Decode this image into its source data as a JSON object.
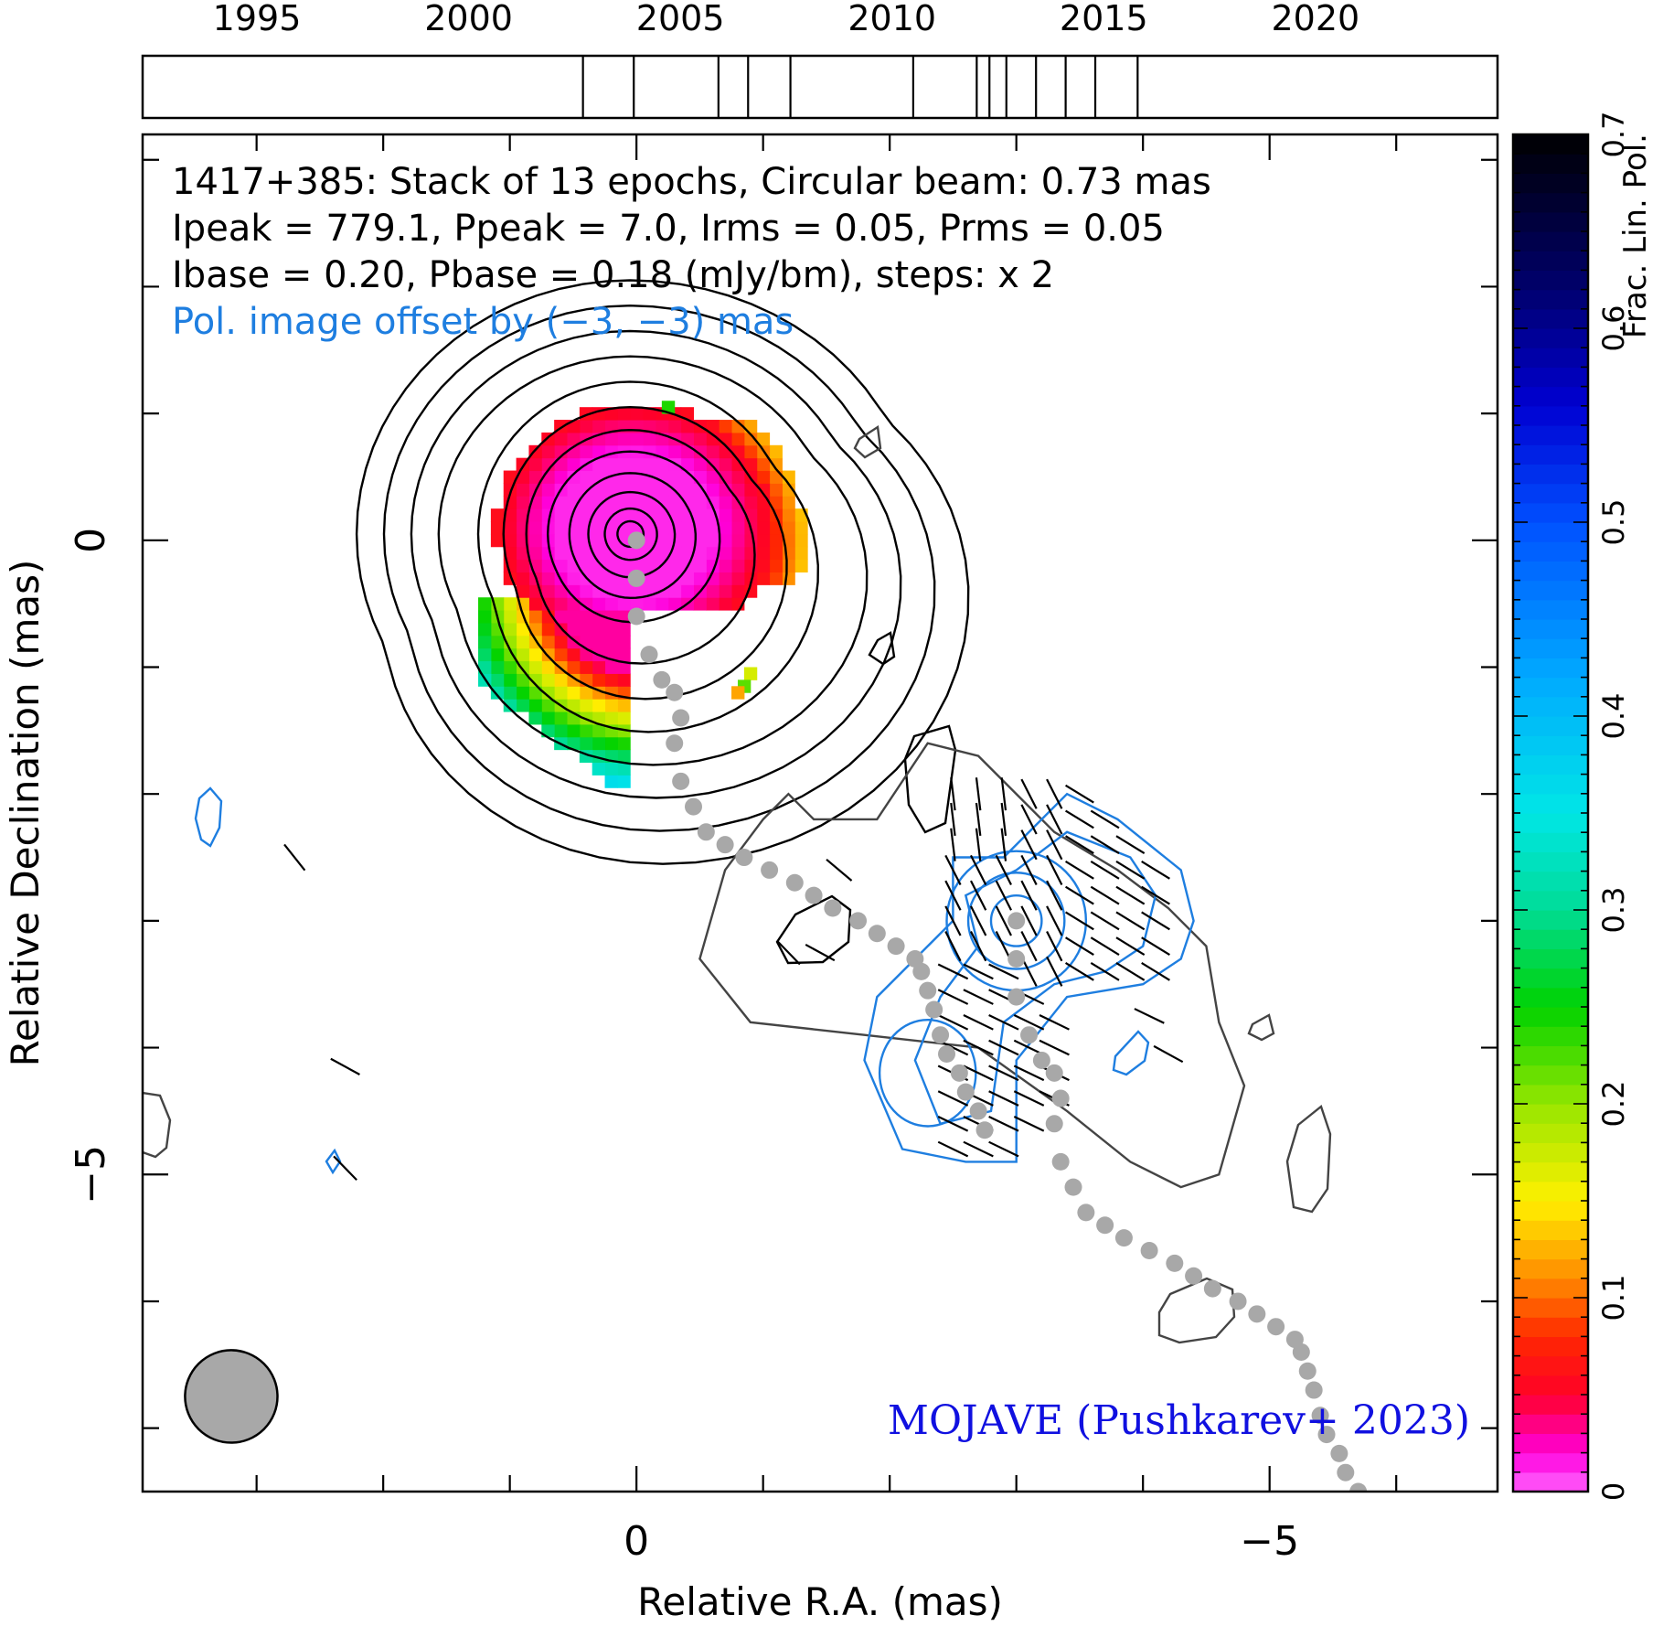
{
  "chart_data": {
    "type": "contour",
    "source": "1417+385",
    "annotations": {
      "line1": "1417+385: Stack of 13 epochs, Circular beam: 0.73 mas",
      "line2": "Ipeak = 779.1, Ppeak = 7.0, Irms = 0.05, Prms = 0.05",
      "line3": "Ibase = 0.20, Pbase = 0.18 (mJy/bm), steps: x 2",
      "line4": "Pol. image offset by (−3, −3) mas",
      "credit": "MOJAVE (Pushkarev+ 2023)"
    },
    "xlabel": "Relative R.A. (mas)",
    "ylabel": "Relative Declination (mas)",
    "xlim": [
      3.9,
      -6.8
    ],
    "ylim": [
      -7.5,
      3.2
    ],
    "x_ticks": [
      {
        "value": 0,
        "label": "0"
      },
      {
        "value": -5,
        "label": "−5"
      }
    ],
    "y_ticks": [
      {
        "value": 0,
        "label": "0"
      },
      {
        "value": -5,
        "label": "−5"
      }
    ],
    "timeline": {
      "range": [
        1992.3,
        2024.3
      ],
      "tick_labels": [
        {
          "year": 1995,
          "label": "1995"
        },
        {
          "year": 2000,
          "label": "2000"
        },
        {
          "year": 2005,
          "label": "2005"
        },
        {
          "year": 2010,
          "label": "2010"
        },
        {
          "year": 2015,
          "label": "2015"
        },
        {
          "year": 2020,
          "label": "2020"
        }
      ],
      "epochs": [
        2002.7,
        2003.9,
        2005.9,
        2006.6,
        2007.6,
        2010.5,
        2012.0,
        2012.3,
        2012.7,
        2013.4,
        2014.1,
        2014.8,
        2015.8
      ]
    },
    "colorbar": {
      "label": "Frac. Lin. Pol.",
      "range": [
        0,
        0.7
      ],
      "ticks": [
        {
          "value": 0,
          "label": "0"
        },
        {
          "value": 0.1,
          "label": "0.1"
        },
        {
          "value": 0.2,
          "label": "0.2"
        },
        {
          "value": 0.3,
          "label": "0.3"
        },
        {
          "value": 0.4,
          "label": "0.4"
        },
        {
          "value": 0.5,
          "label": "0.5"
        },
        {
          "value": 0.6,
          "label": "0.6"
        },
        {
          "value": 0.7,
          "label": "0.7"
        }
      ]
    },
    "beam": {
      "x": 3.2,
      "y": -6.75,
      "diameter": 0.73
    },
    "stokes_i_contours": {
      "center": [
        0.05,
        0.05
      ],
      "radii": [
        2.0,
        1.8,
        1.6,
        1.4,
        1.2,
        1.0,
        0.82,
        0.65,
        0.48,
        0.33,
        0.2,
        0.1
      ]
    },
    "offset_i_contours": [
      [
        [
          -1.4,
          -2.2
        ],
        [
          -1.2,
          -2.0
        ],
        [
          -1.0,
          -2.2
        ],
        [
          -0.7,
          -2.6
        ],
        [
          -0.5,
          -3.3
        ],
        [
          -0.9,
          -3.8
        ],
        [
          -1.8,
          -3.9
        ],
        [
          -2.7,
          -4.0
        ],
        [
          -3.4,
          -4.5
        ],
        [
          -3.9,
          -4.9
        ],
        [
          -4.3,
          -5.1
        ],
        [
          -4.6,
          -5.0
        ],
        [
          -4.8,
          -4.3
        ],
        [
          -4.6,
          -3.8
        ],
        [
          -4.5,
          -3.2
        ],
        [
          -4.2,
          -2.9
        ],
        [
          -3.8,
          -2.6
        ],
        [
          -3.3,
          -2.3
        ],
        [
          -2.7,
          -1.7
        ],
        [
          -2.3,
          -1.6
        ],
        [
          -1.9,
          -2.2
        ],
        [
          -1.4,
          -2.2
        ]
      ]
    ],
    "pol_contours": [
      [
        [
          -2.9,
          -2.5
        ],
        [
          -3.4,
          -2.0
        ],
        [
          -3.8,
          -2.2
        ],
        [
          -4.3,
          -2.6
        ],
        [
          -4.4,
          -3.0
        ],
        [
          -4.3,
          -3.3
        ],
        [
          -4.0,
          -3.5
        ],
        [
          -3.4,
          -3.6
        ],
        [
          -3.0,
          -4.1
        ],
        [
          -3.0,
          -4.9
        ],
        [
          -2.6,
          -4.9
        ],
        [
          -2.1,
          -4.8
        ],
        [
          -1.8,
          -4.1
        ],
        [
          -1.9,
          -3.6
        ],
        [
          -2.2,
          -3.3
        ],
        [
          -2.5,
          -3.0
        ],
        [
          -2.5,
          -2.5
        ],
        [
          -2.9,
          -2.5
        ]
      ],
      [
        [
          -3.0,
          -2.6
        ],
        [
          -3.4,
          -2.3
        ],
        [
          -3.9,
          -2.5
        ],
        [
          -4.1,
          -2.8
        ],
        [
          -4.0,
          -3.2
        ],
        [
          -3.7,
          -3.4
        ],
        [
          -3.3,
          -3.5
        ],
        [
          -2.9,
          -3.8
        ],
        [
          -2.8,
          -4.5
        ],
        [
          -2.4,
          -4.6
        ],
        [
          -2.2,
          -4.1
        ],
        [
          -2.4,
          -3.6
        ],
        [
          -2.7,
          -3.2
        ],
        [
          -2.6,
          -2.8
        ],
        [
          -3.0,
          -2.6
        ]
      ]
    ],
    "jet_ridge_core": [
      [
        0,
        0
      ],
      [
        0,
        -0.3
      ],
      [
        0,
        -0.6
      ],
      [
        -0.1,
        -0.9
      ],
      [
        -0.2,
        -1.1
      ],
      [
        -0.3,
        -1.2
      ],
      [
        -0.35,
        -1.4
      ],
      [
        -0.3,
        -1.6
      ],
      [
        -0.35,
        -1.9
      ],
      [
        -0.45,
        -2.1
      ],
      [
        -0.55,
        -2.3
      ],
      [
        -0.7,
        -2.4
      ],
      [
        -0.85,
        -2.5
      ],
      [
        -1.05,
        -2.6
      ],
      [
        -1.25,
        -2.7
      ],
      [
        -1.4,
        -2.8
      ],
      [
        -1.55,
        -2.9
      ],
      [
        -1.75,
        -3.0
      ],
      [
        -1.9,
        -3.1
      ],
      [
        -2.05,
        -3.2
      ],
      [
        -2.2,
        -3.3
      ],
      [
        -2.25,
        -3.4
      ],
      [
        -2.3,
        -3.55
      ],
      [
        -2.35,
        -3.7
      ],
      [
        -2.4,
        -3.9
      ],
      [
        -2.45,
        -4.05
      ],
      [
        -2.55,
        -4.2
      ],
      [
        -2.6,
        -4.35
      ],
      [
        -2.7,
        -4.5
      ],
      [
        -2.75,
        -4.65
      ]
    ],
    "pol_fraction_levels": [
      0.02,
      0.05,
      0.1,
      0.15,
      0.2,
      0.3,
      0.4,
      0.55
    ]
  }
}
